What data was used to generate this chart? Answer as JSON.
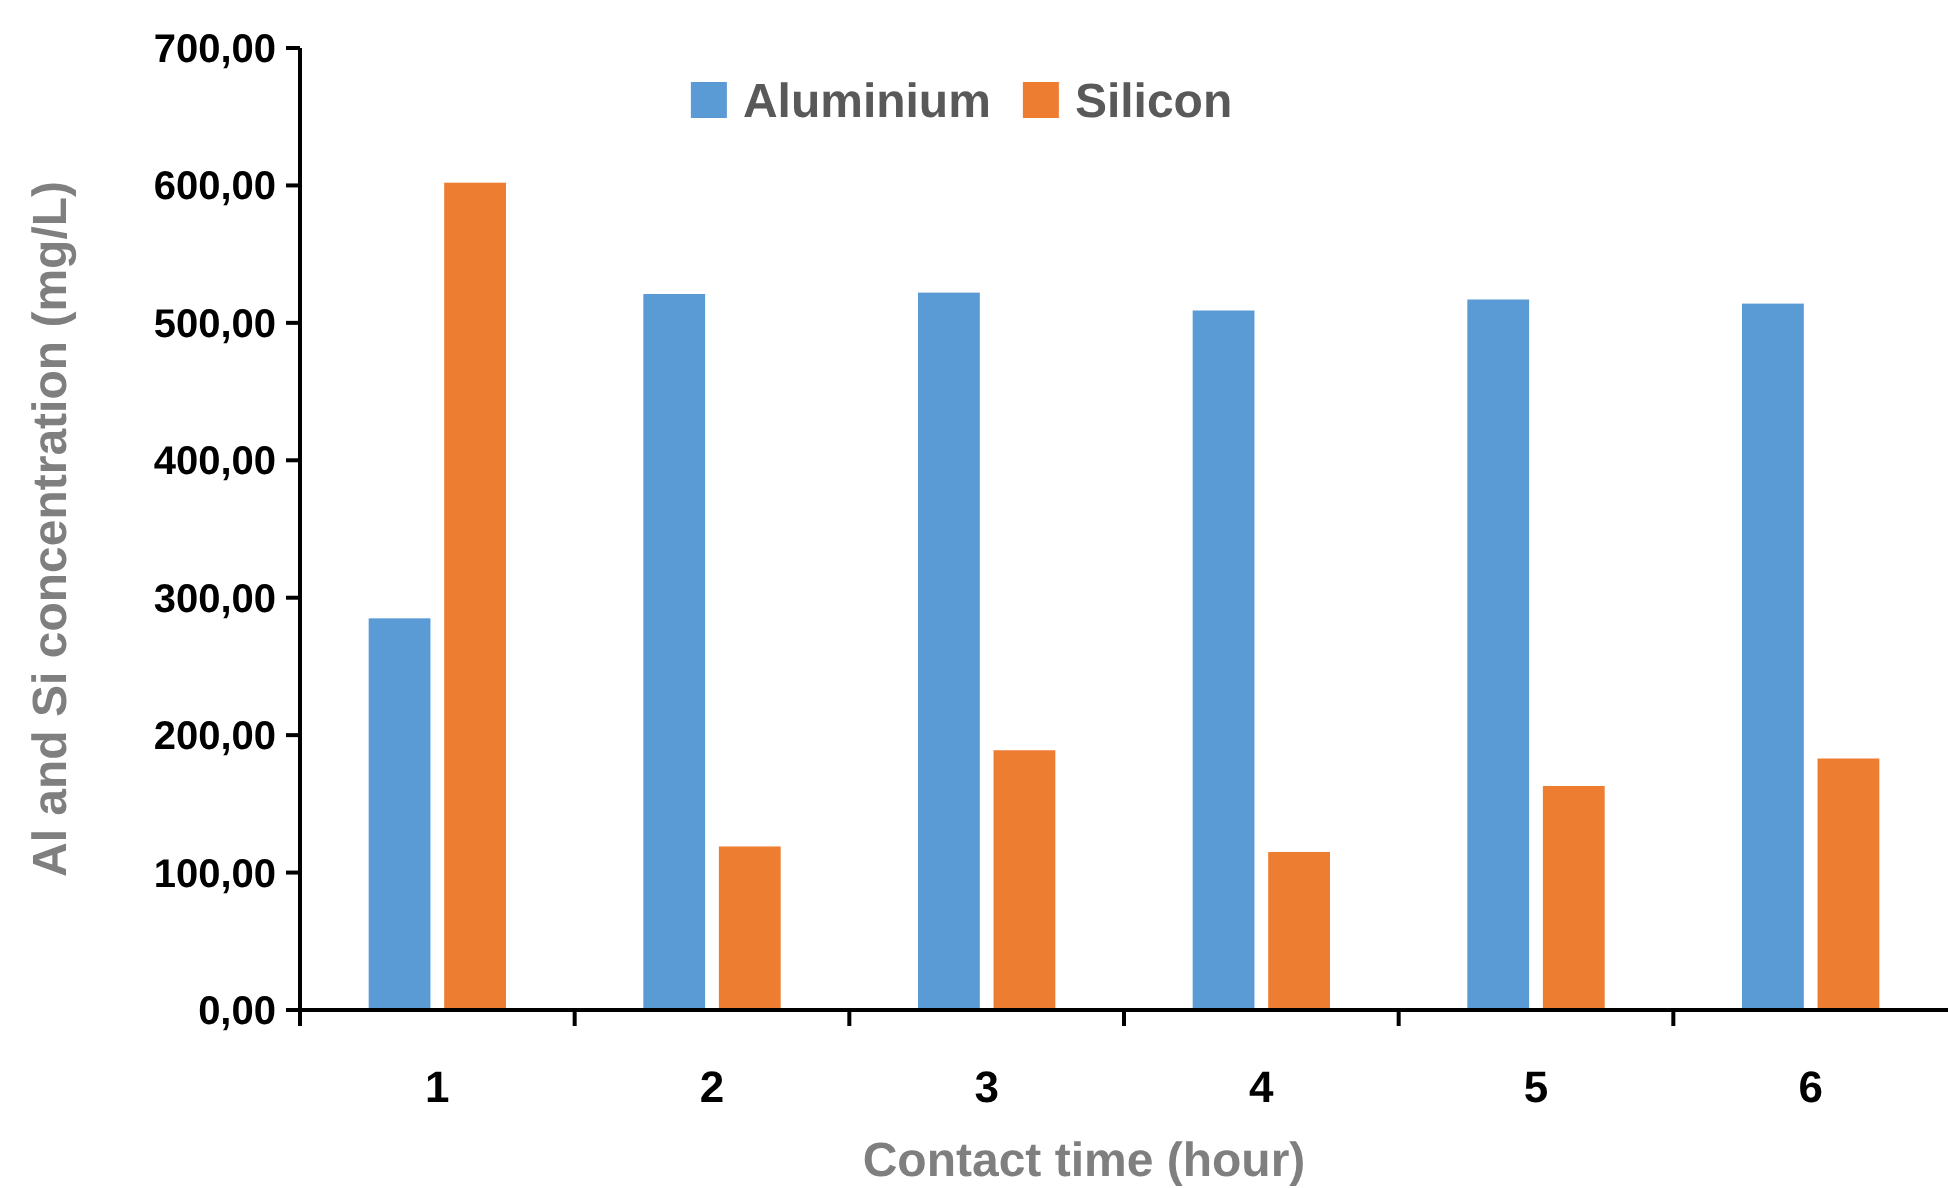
{
  "chart_data": {
    "type": "bar",
    "xlabel": "Contact time (hour)",
    "ylabel": "Al and Si concentration (mg/L)",
    "categories": [
      "1",
      "2",
      "3",
      "4",
      "5",
      "6"
    ],
    "series": [
      {
        "name": "Aluminium",
        "color": "#5b9bd5",
        "values": [
          285,
          521,
          522,
          509,
          517,
          514
        ]
      },
      {
        "name": "Silicon",
        "color": "#ed7d31",
        "values": [
          602,
          119,
          189,
          115,
          163,
          183
        ]
      }
    ],
    "ylim": [
      0,
      700
    ],
    "yticks": [
      {
        "value": 0,
        "label": "0,00"
      },
      {
        "value": 100,
        "label": "100,00"
      },
      {
        "value": 200,
        "label": "200,00"
      },
      {
        "value": 300,
        "label": "300,00"
      },
      {
        "value": 400,
        "label": "400,00"
      },
      {
        "value": 500,
        "label": "500,00"
      },
      {
        "value": 600,
        "label": "600,00"
      },
      {
        "value": 700,
        "label": "700,00"
      }
    ],
    "legend": "top",
    "grid": false
  }
}
